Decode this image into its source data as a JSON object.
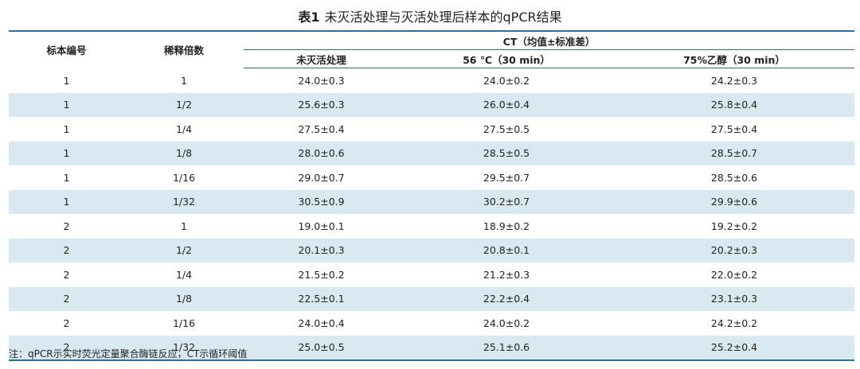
{
  "title": {
    "number": "表1",
    "text": "未灭活处理与灭活处理后样本的qPCR结果"
  },
  "headers": {
    "sample_no": "标本编号",
    "dilution": "稀释倍数",
    "ct_group": "CT（均值±标准差）",
    "sub": [
      "未灭活处理",
      "56 ℃（30 min）",
      "75%乙醇（30 min）"
    ]
  },
  "rows": [
    [
      "1",
      "1",
      "24.0±0.3",
      "24.0±0.2",
      "24.2±0.3"
    ],
    [
      "1",
      "1/2",
      "25.6±0.3",
      "26.0±0.4",
      "25.8±0.4"
    ],
    [
      "1",
      "1/4",
      "27.5±0.4",
      "27.5±0.5",
      "27.5±0.4"
    ],
    [
      "1",
      "1/8",
      "28.0±0.6",
      "28.5±0.5",
      "28.5±0.7"
    ],
    [
      "1",
      "1/16",
      "29.0±0.7",
      "29.5±0.7",
      "28.5±0.6"
    ],
    [
      "1",
      "1/32",
      "30.5±0.9",
      "30.2±0.7",
      "29.9±0.6"
    ],
    [
      "2",
      "1",
      "19.0±0.1",
      "18.9±0.2",
      "19.2±0.2"
    ],
    [
      "2",
      "1/2",
      "20.1±0.3",
      "20.8±0.1",
      "20.2±0.3"
    ],
    [
      "2",
      "1/4",
      "21.5±0.2",
      "21.2±0.3",
      "22.0±0.2"
    ],
    [
      "2",
      "1/8",
      "22.5±0.1",
      "22.2±0.4",
      "23.1±0.3"
    ],
    [
      "2",
      "1/16",
      "24.0±0.4",
      "24.0±0.2",
      "24.2±0.2"
    ],
    [
      "2",
      "1/32",
      "25.0±0.5",
      "25.1±0.6",
      "25.2±0.4"
    ]
  ],
  "note": "注：qPCR示实时荧光定量聚合酶链反应，CT示循环阈值",
  "colors": {
    "rule": "#2f6f8f",
    "stripe": "#d9e9f1"
  }
}
